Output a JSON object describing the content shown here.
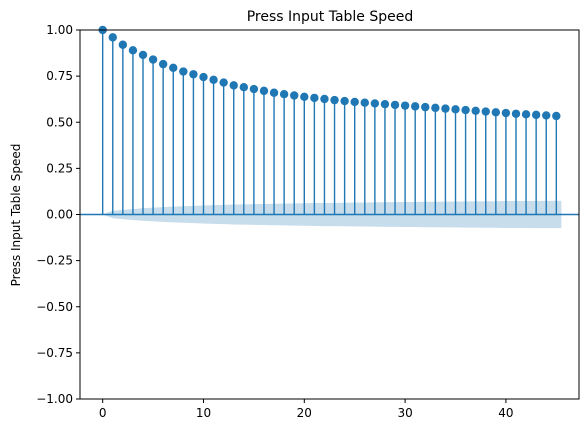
{
  "chart_data": {
    "type": "stem",
    "title": "Press Input Table Speed",
    "xlabel": "",
    "ylabel": "Press Input Table Speed",
    "xlim": [
      -2.25,
      47.25
    ],
    "ylim": [
      -1.0,
      1.0
    ],
    "xticks": [
      0,
      10,
      20,
      30,
      40
    ],
    "xtick_labels": [
      "0",
      "10",
      "20",
      "30",
      "40"
    ],
    "yticks": [
      -1.0,
      -0.75,
      -0.5,
      -0.25,
      0.0,
      0.25,
      0.5,
      0.75,
      1.0
    ],
    "ytick_labels": [
      "−1.00",
      "−0.75",
      "−0.50",
      "−0.25",
      "0.00",
      "0.25",
      "0.50",
      "0.75",
      "1.00"
    ],
    "grid": false,
    "stem_color": "#1f77b4",
    "confidence_color": "#1f77b4",
    "lags": [
      0,
      1,
      2,
      3,
      4,
      5,
      6,
      7,
      8,
      9,
      10,
      11,
      12,
      13,
      14,
      15,
      16,
      17,
      18,
      19,
      20,
      21,
      22,
      23,
      24,
      25,
      26,
      27,
      28,
      29,
      30,
      31,
      32,
      33,
      34,
      35,
      36,
      37,
      38,
      39,
      40,
      41,
      42,
      43,
      44,
      45
    ],
    "values": [
      1.0,
      0.96,
      0.92,
      0.89,
      0.865,
      0.84,
      0.815,
      0.795,
      0.775,
      0.76,
      0.745,
      0.73,
      0.715,
      0.7,
      0.69,
      0.68,
      0.67,
      0.66,
      0.652,
      0.645,
      0.638,
      0.632,
      0.626,
      0.62,
      0.615,
      0.61,
      0.606,
      0.602,
      0.598,
      0.594,
      0.59,
      0.586,
      0.582,
      0.578,
      0.574,
      0.57,
      0.566,
      0.562,
      0.558,
      0.554,
      0.55,
      0.546,
      0.543,
      0.54,
      0.537,
      0.534
    ],
    "confidence_band": {
      "lags": [
        0,
        1,
        2,
        3,
        4,
        5,
        6,
        7,
        8,
        9,
        10,
        11,
        12,
        13,
        14,
        15,
        16,
        17,
        18,
        19,
        20,
        21,
        22,
        23,
        24,
        25,
        26,
        27,
        28,
        29,
        30,
        31,
        32,
        33,
        34,
        35,
        36,
        37,
        38,
        39,
        40,
        41,
        42,
        43,
        44,
        45
      ],
      "half_width": [
        0.0,
        0.02,
        0.025,
        0.03,
        0.034,
        0.037,
        0.04,
        0.043,
        0.045,
        0.047,
        0.049,
        0.051,
        0.052,
        0.054,
        0.055,
        0.056,
        0.057,
        0.058,
        0.059,
        0.06,
        0.061,
        0.062,
        0.063,
        0.063,
        0.064,
        0.065,
        0.065,
        0.066,
        0.067,
        0.067,
        0.068,
        0.068,
        0.069,
        0.069,
        0.07,
        0.07,
        0.071,
        0.071,
        0.072,
        0.072,
        0.073,
        0.073,
        0.073,
        0.074,
        0.074,
        0.074
      ]
    }
  }
}
